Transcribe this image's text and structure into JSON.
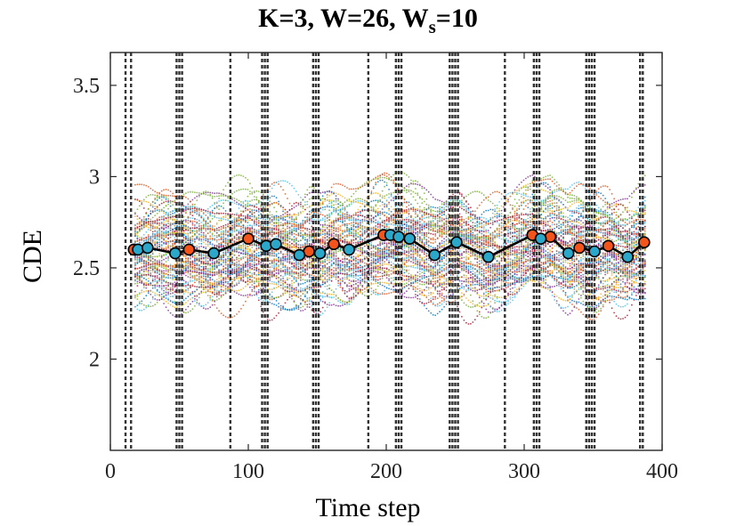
{
  "chart_data": {
    "type": "scatter",
    "title_main": "K=3, W=26, W",
    "title_sub": "s",
    "title_tail": "=10",
    "xlabel": "Time step",
    "ylabel": "CDE",
    "xlim": [
      0,
      400
    ],
    "ylim": [
      1.5,
      3.68
    ],
    "xticks": [
      0,
      100,
      200,
      300,
      400
    ],
    "xtick_labels": [
      "0",
      "100",
      "200",
      "300",
      "400"
    ],
    "yticks": [
      2,
      2.5,
      3,
      3.5
    ],
    "ytick_labels": [
      "2",
      "2.5",
      "3",
      "3.5"
    ],
    "background_series": "many dotted colored trajectories spanning time steps ~17-388, CDE mostly 2.3-3.0",
    "vertical_dashed_lines_x": [
      11,
      15,
      48,
      50,
      52,
      87,
      110,
      112,
      114,
      147,
      149,
      151,
      187,
      207,
      209,
      211,
      246,
      248,
      250,
      252,
      286,
      307,
      309,
      311,
      345,
      347,
      349,
      351,
      384,
      386
    ],
    "mean_line": {
      "x": [
        17,
        20,
        27,
        47,
        57,
        75,
        100,
        113,
        120,
        137,
        144,
        152,
        162,
        173,
        198,
        203,
        209,
        217,
        235,
        251,
        274,
        306,
        312,
        319,
        332,
        340,
        351,
        361,
        375,
        387
      ],
      "y": [
        2.6,
        2.6,
        2.61,
        2.58,
        2.6,
        2.58,
        2.66,
        2.62,
        2.63,
        2.57,
        2.59,
        2.58,
        2.63,
        2.6,
        2.68,
        2.68,
        2.67,
        2.66,
        2.57,
        2.64,
        2.56,
        2.68,
        2.66,
        2.67,
        2.58,
        2.61,
        2.59,
        2.62,
        2.56,
        2.64
      ]
    },
    "markers_blue": {
      "color": "#2aa7c9",
      "x": [
        20,
        27,
        47,
        75,
        113,
        120,
        137,
        152,
        173,
        203,
        209,
        217,
        235,
        251,
        274,
        312,
        332,
        351,
        375
      ],
      "y": [
        2.6,
        2.61,
        2.58,
        2.58,
        2.62,
        2.63,
        2.57,
        2.58,
        2.6,
        2.68,
        2.67,
        2.66,
        2.57,
        2.64,
        2.56,
        2.66,
        2.58,
        2.59,
        2.56
      ]
    },
    "markers_red": {
      "color": "#f2541b",
      "x": [
        17,
        57,
        100,
        144,
        162,
        198,
        306,
        319,
        340,
        361,
        387
      ],
      "y": [
        2.6,
        2.6,
        2.66,
        2.59,
        2.63,
        2.68,
        2.68,
        2.67,
        2.61,
        2.62,
        2.64
      ]
    },
    "grid": false,
    "legend": "none"
  }
}
